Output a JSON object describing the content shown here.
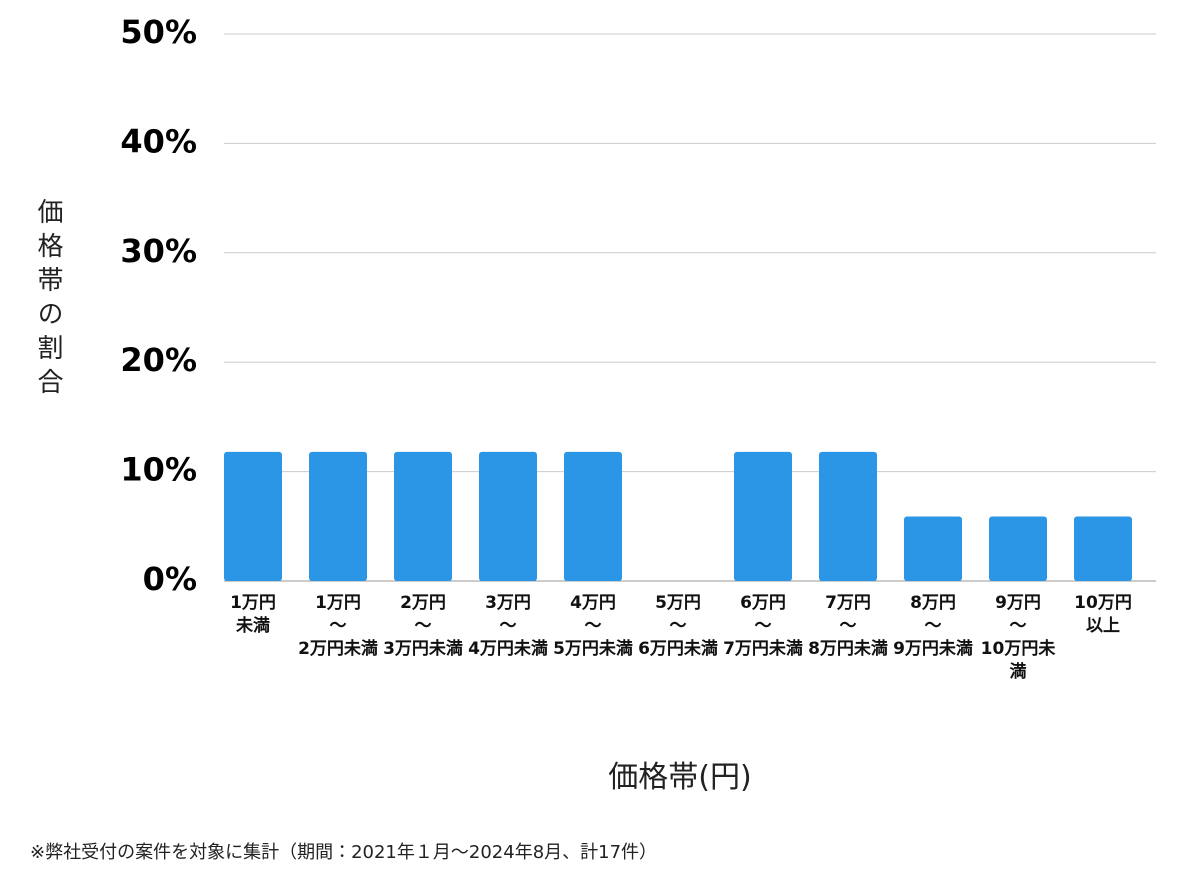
{
  "chart_data": {
    "type": "bar",
    "y_axis_label": "価格帯の割合",
    "x_axis_label": "価格帯(円)",
    "footnote": "※弊社受付の案件を対象に集計（期間：2021年１月〜2024年8月、計17件）",
    "categories": [
      "1万円\n未満",
      "1万円\n〜\n2万円未満",
      "2万円\n〜\n3万円未満",
      "3万円\n〜\n4万円未満",
      "4万円\n〜\n5万円未満",
      "5万円\n〜\n6万円未満",
      "6万円\n〜\n7万円未満",
      "7万円\n〜\n8万円未満",
      "8万円\n〜\n9万円未満",
      "9万円\n〜\n10万円未満",
      "10万円\n以上"
    ],
    "values": [
      11.8,
      11.8,
      11.8,
      11.8,
      11.8,
      0,
      11.8,
      11.8,
      5.9,
      5.9,
      5.9
    ],
    "color": "#2b96e6",
    "ylim": [
      0,
      50
    ],
    "yticks": [
      {
        "value": 0,
        "label": "0%"
      },
      {
        "value": 10,
        "label": "10%"
      },
      {
        "value": 20,
        "label": "20%"
      },
      {
        "value": 30,
        "label": "30%"
      },
      {
        "value": 40,
        "label": "40%"
      },
      {
        "value": 50,
        "label": "50%"
      }
    ],
    "grid": true
  }
}
